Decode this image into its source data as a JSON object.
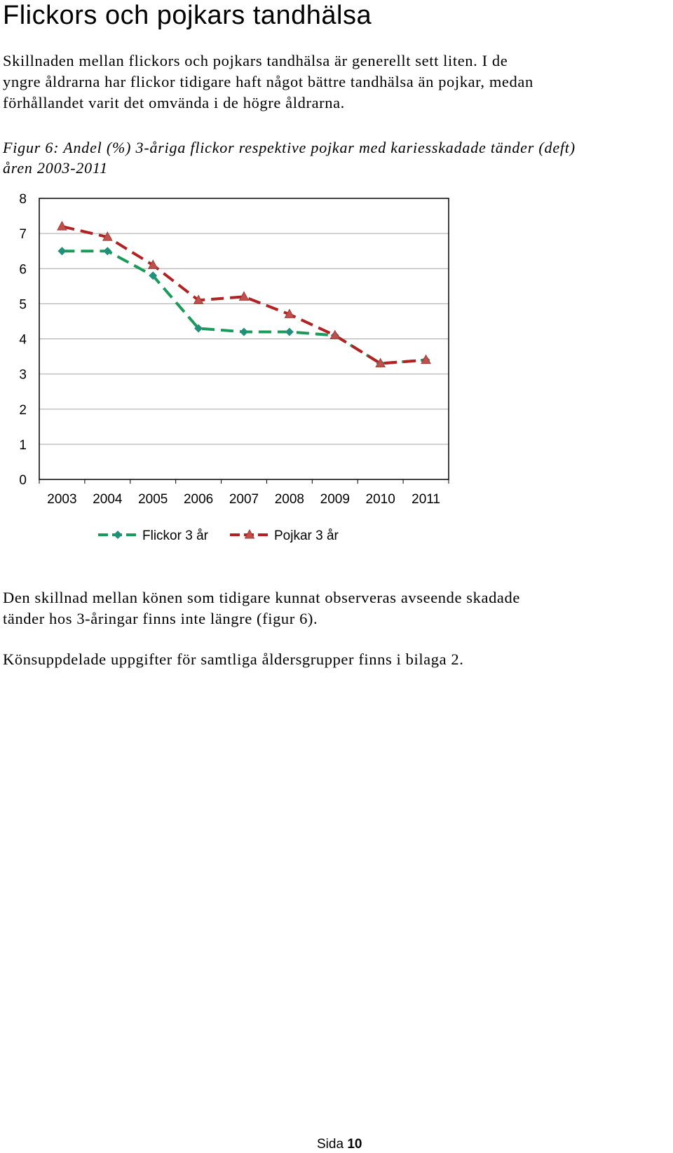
{
  "heading": "Flickors och pojkars tandhälsa",
  "intro_paragraph_lines": [
    "Skillnaden mellan flickors och pojkars tandhälsa är generellt sett liten. I de",
    "yngre åldrarna har flickor tidigare haft något bättre tandhälsa än pojkar, medan",
    "förhållandet varit det omvända i de högre åldrarna."
  ],
  "figure_caption_lines": [
    "Figur 6: Andel (%) 3-åriga flickor respektive pojkar med kariesskadade tänder (deft)",
    "åren 2003-2011"
  ],
  "chart_data": {
    "type": "line",
    "title": "",
    "xlabel": "",
    "ylabel": "",
    "categories": [
      "2003",
      "2004",
      "2005",
      "2006",
      "2007",
      "2008",
      "2009",
      "2010",
      "2011"
    ],
    "ylim": [
      0,
      8
    ],
    "yticks": [
      "0",
      "1",
      "2",
      "3",
      "4",
      "5",
      "6",
      "7",
      "8"
    ],
    "grid": true,
    "legend_position": "bottom",
    "series": [
      {
        "name": "Flickor 3 år",
        "values": [
          6.5,
          6.5,
          5.8,
          4.3,
          4.2,
          4.2,
          4.1,
          3.3,
          3.4
        ],
        "color": "#1a9b5a",
        "marker": "diamond",
        "line_style": "dashed"
      },
      {
        "name": "Pojkar 3 år",
        "values": [
          7.2,
          6.9,
          6.1,
          5.1,
          5.2,
          4.7,
          4.1,
          3.3,
          3.4
        ],
        "color": "#b22222",
        "marker": "triangle",
        "line_style": "dashed"
      }
    ]
  },
  "body_paragraph_lines": [
    "Den skillnad mellan könen som tidigare kunnat observeras avseende skadade",
    "tänder hos 3-åringar finns inte längre (figur 6)."
  ],
  "closing_paragraph": "Könsuppdelade uppgifter för samtliga åldersgrupper finns i bilaga 2.",
  "footer": {
    "label": "Sida",
    "page_number": "10"
  }
}
